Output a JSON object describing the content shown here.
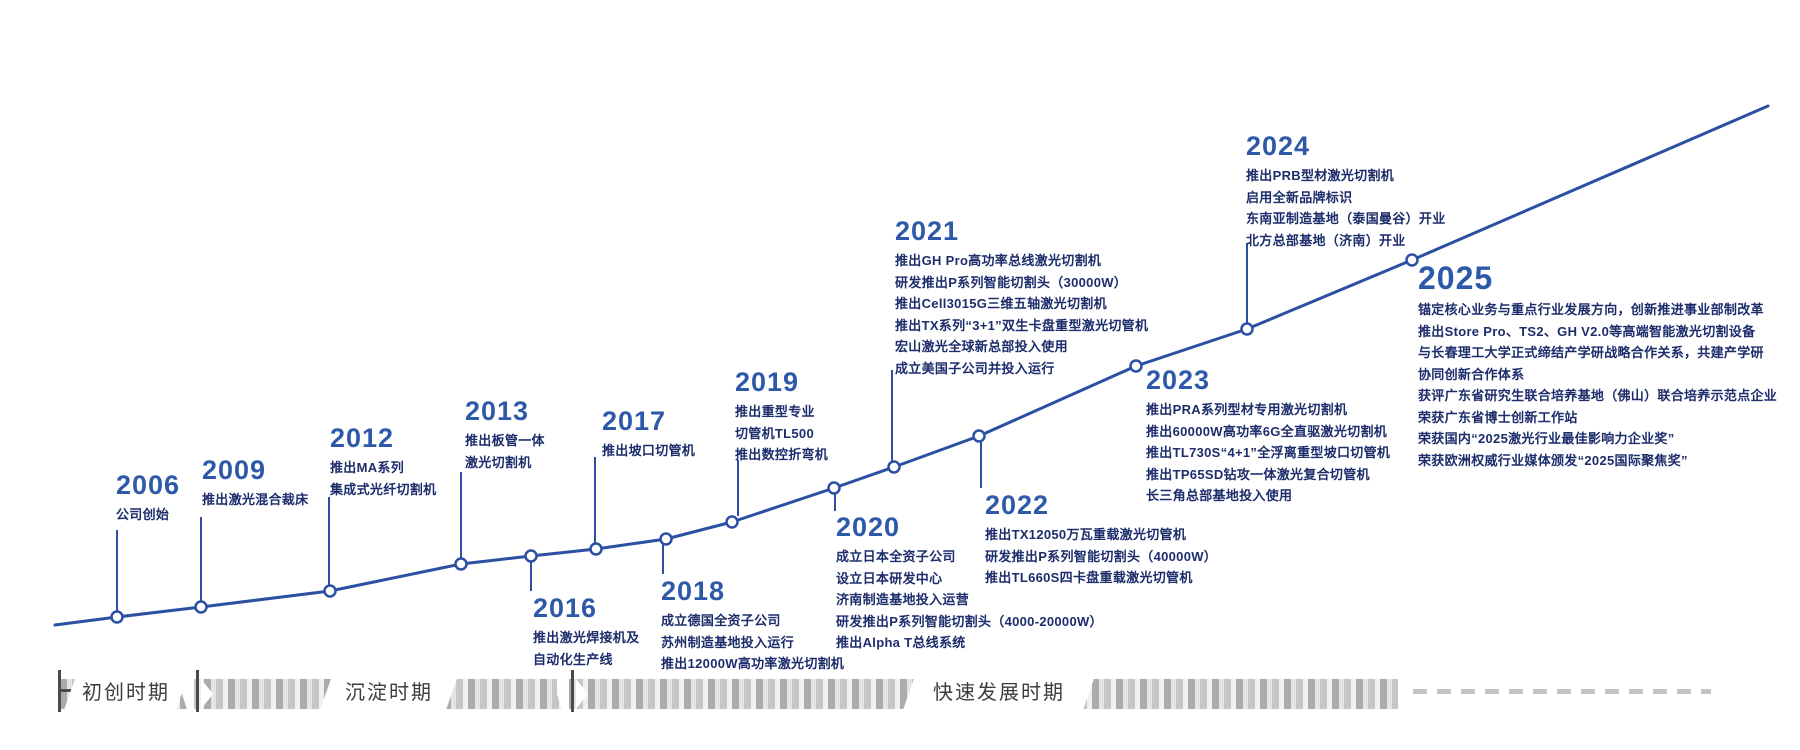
{
  "timeline": {
    "phases": [
      {
        "label": "初创时期"
      },
      {
        "label": "沉淀时期"
      },
      {
        "label": "快速发展时期"
      }
    ],
    "milestones": [
      {
        "year": "2006",
        "events": [
          "公司创始"
        ]
      },
      {
        "year": "2009",
        "events": [
          "推出激光混合裁床"
        ]
      },
      {
        "year": "2012",
        "events": [
          "推出MA系列",
          "集成式光纤切割机"
        ]
      },
      {
        "year": "2013",
        "events": [
          "推出板管一体",
          "激光切割机"
        ]
      },
      {
        "year": "2016",
        "events": [
          "推出激光焊接机及",
          "自动化生产线"
        ]
      },
      {
        "year": "2017",
        "events": [
          "推出坡口切管机"
        ]
      },
      {
        "year": "2018",
        "events": [
          "成立德国全资子公司",
          "苏州制造基地投入运行",
          "推出12000W高功率激光切割机"
        ]
      },
      {
        "year": "2019",
        "events": [
          "推出重型专业",
          "切管机TL500",
          "推出数控折弯机"
        ]
      },
      {
        "year": "2020",
        "events": [
          "成立日本全资子公司",
          "设立日本研发中心",
          "济南制造基地投入运营",
          "研发推出P系列智能切割头（4000-20000W）",
          "推出Alpha T总线系统"
        ]
      },
      {
        "year": "2021",
        "events": [
          "推出GH Pro高功率总线激光切割机",
          "研发推出P系列智能切割头（30000W）",
          "推出Cell3015G三维五轴激光切割机",
          "推出TX系列“3+1”双生卡盘重型激光切管机",
          "宏山激光全球新总部投入使用",
          "成立美国子公司并投入运行"
        ]
      },
      {
        "year": "2022",
        "events": [
          "推出TX12050万瓦重载激光切管机",
          "研发推出P系列智能切割头（40000W）",
          "推出TL660S四卡盘重载激光切管机"
        ]
      },
      {
        "year": "2023",
        "events": [
          "推出PRA系列型材专用激光切割机",
          "推出60000W高功率6G全直驱激光切割机",
          "推出TL730S“4+1”全浮离重型坡口切管机",
          "推出TP65SD钻攻一体激光复合切管机",
          "长三角总部基地投入使用"
        ]
      },
      {
        "year": "2024",
        "events": [
          "推出PRB型材激光切割机",
          "启用全新品牌标识",
          "东南亚制造基地（泰国曼谷）开业",
          "北方总部基地（济南）开业"
        ]
      },
      {
        "year": "2025",
        "events": [
          "锚定核心业务与重点行业发展方向，创新推进事业部制改革",
          "推出Store Pro、TS2、GH V2.0等高端智能激光切割设备",
          "与长春理工大学正式缔结产学研战略合作关系，共建产学研",
          "协同创新合作体系",
          "获评广东省研究生联合培养基地（佛山）联合培养示范点企业",
          "荣获广东省博士创新工作站",
          "荣获国内“2025激光行业最佳影响力企业奖”",
          "荣获欧洲权威行业媒体颁发“2025国际聚焦奖”"
        ]
      }
    ],
    "colors": {
      "year_text": "#2e59a9",
      "event_text": "#1d2d6b",
      "curve": "#2b4fa3",
      "phase_text": "#3d3d3d"
    }
  }
}
